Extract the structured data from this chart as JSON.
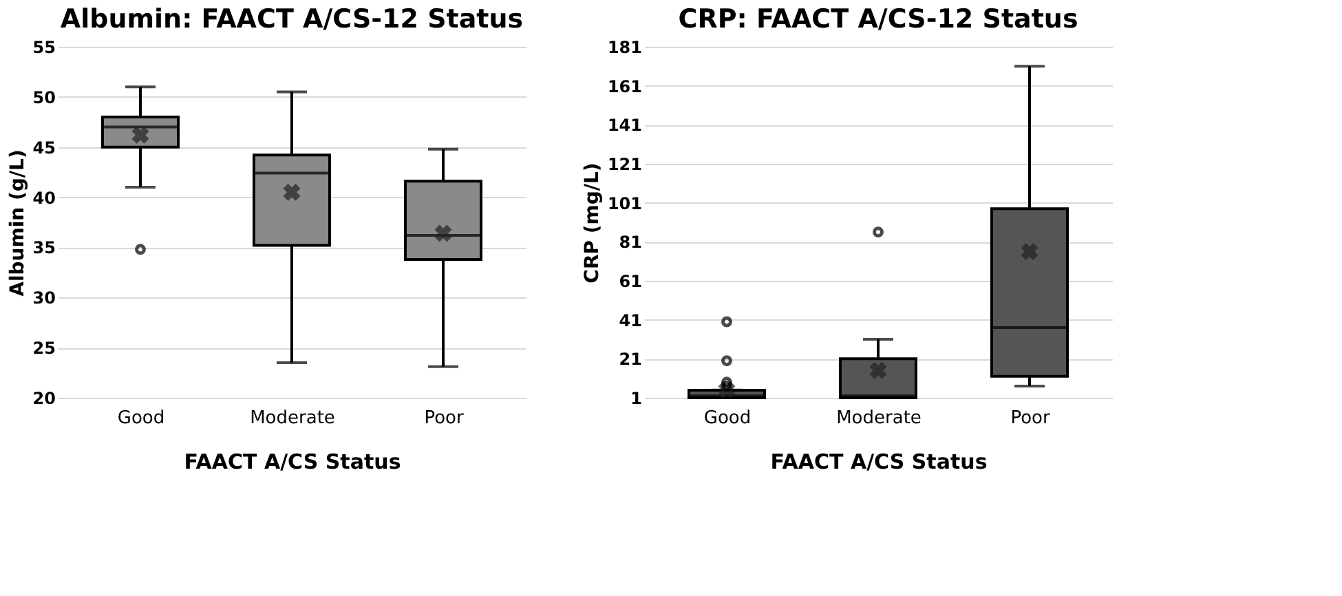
{
  "chart_data": [
    {
      "type": "box",
      "title": "Albumin: FAACT A/CS-12 Status",
      "xlabel": "FAACT A/CS Status",
      "ylabel": "Albumin (g/L)",
      "categories": [
        "Good",
        "Moderate",
        "Poor"
      ],
      "color": "#8a8a8a",
      "boxes": [
        {
          "low": 41,
          "q1": 45,
          "median": 47,
          "q3": 48,
          "high": 51,
          "mean": 46.2,
          "outliers": [
            34.8
          ]
        },
        {
          "low": 23.5,
          "q1": 35.2,
          "median": 42.4,
          "q3": 44.2,
          "high": 50.5,
          "mean": 40.5
        },
        {
          "low": 23.1,
          "q1": 33.8,
          "median": 36.2,
          "q3": 41.6,
          "high": 44.8,
          "mean": 36.4
        }
      ],
      "ylim": [
        20,
        55
      ],
      "yticks": [
        20,
        25,
        30,
        35,
        40,
        45,
        50,
        55
      ],
      "grid": "y"
    },
    {
      "type": "box",
      "title": "CRP: FAACT A/CS-12 Status",
      "xlabel": "FAACT A/CS Status",
      "ylabel": "CRP (mg/L)",
      "categories": [
        "Good",
        "Moderate",
        "Poor"
      ],
      "color": "#555555",
      "boxes": [
        {
          "low": 1,
          "q1": 1,
          "median": 2,
          "q3": 4.9,
          "high": 5,
          "mean": 5,
          "outliers": [
            7,
            9,
            20,
            40
          ]
        },
        {
          "low": 1,
          "q1": 1,
          "median": 2,
          "q3": 21,
          "high": 31,
          "mean": 15,
          "outliers": [
            86
          ]
        },
        {
          "low": 7,
          "q1": 12,
          "median": 37,
          "q3": 98,
          "high": 171,
          "mean": 76
        }
      ],
      "ylim": [
        1,
        181
      ],
      "yticks": [
        1,
        21,
        41,
        61,
        81,
        101,
        121,
        141,
        161,
        181
      ],
      "grid": "y"
    }
  ]
}
